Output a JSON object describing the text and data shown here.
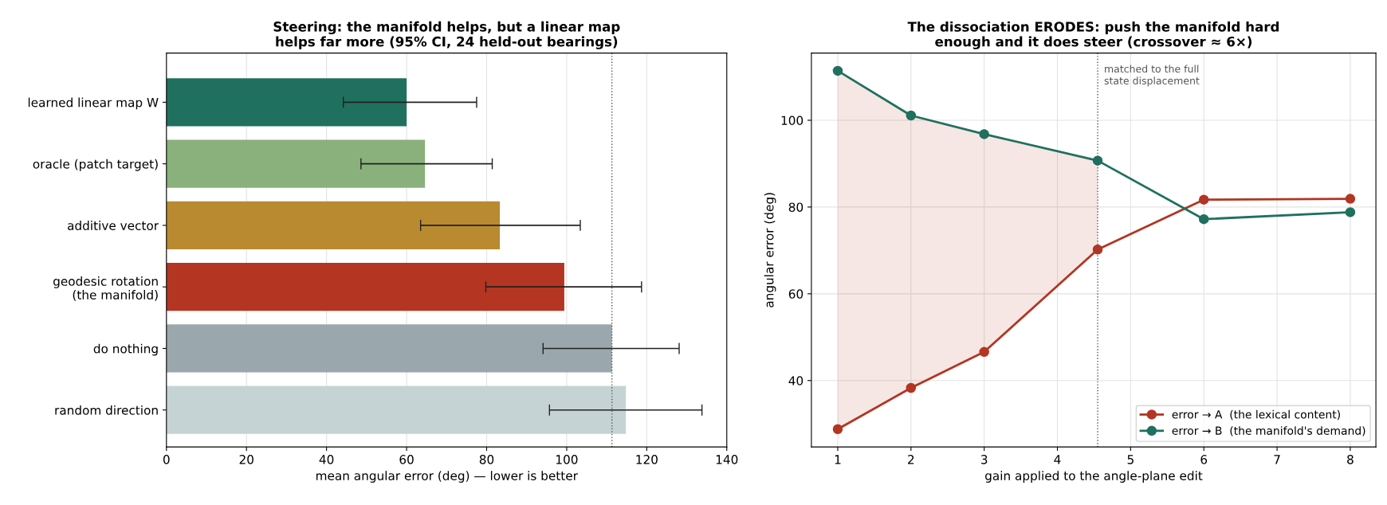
{
  "chart_data": [
    {
      "type": "bar",
      "orientation": "horizontal",
      "title": "Steering: the manifold helps, but a linear map\nhelps far more (95% CI, 24 held-out bearings)",
      "xlabel": "mean angular error (deg) — lower is better",
      "categories": [
        "learned linear map W",
        "oracle (patch target)",
        "additive vector",
        "geodesic rotation\n(the manifold)",
        "do nothing",
        "random direction"
      ],
      "values": [
        60.0,
        64.6,
        83.3,
        99.4,
        111.3,
        114.8
      ],
      "colors": [
        "#20705f",
        "#8ab07c",
        "#b98a30",
        "#b33522",
        "#9aa7ad",
        "#c6d3d4"
      ],
      "errors": [
        [
          44.2,
          77.5
        ],
        [
          48.6,
          81.4
        ],
        [
          63.5,
          103.4
        ],
        [
          79.8,
          118.7
        ],
        [
          94.1,
          128.1
        ],
        [
          95.7,
          133.8
        ]
      ],
      "xlim": [
        0,
        140
      ],
      "xticks": [
        0,
        20,
        40,
        60,
        80,
        100,
        120,
        140
      ],
      "grid": "x",
      "ref_lines": [
        {
          "axis": "x",
          "value": 111.3,
          "color": "#555555",
          "line_style": "dotted"
        }
      ]
    },
    {
      "type": "line",
      "title": "The dissociation ERODES: push the manifold hard\nenough and it does steer (crossover ≈ 6×)",
      "xlabel": "gain applied to the angle-plane edit",
      "ylabel": "angular error (deg)",
      "series": [
        {
          "name": "error → A  (the lexical content)",
          "color": "#b33522",
          "x": [
            1,
            2,
            3,
            4.55,
            6,
            8
          ],
          "values": [
            28.8,
            38.3,
            46.6,
            70.2,
            81.7,
            81.9
          ],
          "lower": [
            28.8,
            38.3,
            46.6,
            70.2,
            null,
            null
          ],
          "upper": [
            111.4,
            101.1,
            96.8,
            90.7,
            null,
            null
          ]
        },
        {
          "name": "error → B  (the manifold's demand)",
          "color": "#20705f",
          "x": [
            1,
            2,
            3,
            4.55,
            6,
            8
          ],
          "values": [
            111.4,
            101.1,
            96.8,
            90.7,
            77.2,
            78.8
          ]
        }
      ],
      "xlim": [
        0.64,
        8.35
      ],
      "xticks": [
        1,
        2,
        3,
        4,
        5,
        6,
        7,
        8
      ],
      "ylim": [
        24.7,
        115.5
      ],
      "yticks": [
        40,
        60,
        80,
        100
      ],
      "grid": true,
      "legend": "bottom right",
      "marker": "circle",
      "line_style": "solid",
      "ref_lines": [
        {
          "axis": "x",
          "value": 4.55,
          "label": "matched to the full\nstate displacement",
          "color": "#555555",
          "line_style": "dotted"
        }
      ]
    }
  ]
}
